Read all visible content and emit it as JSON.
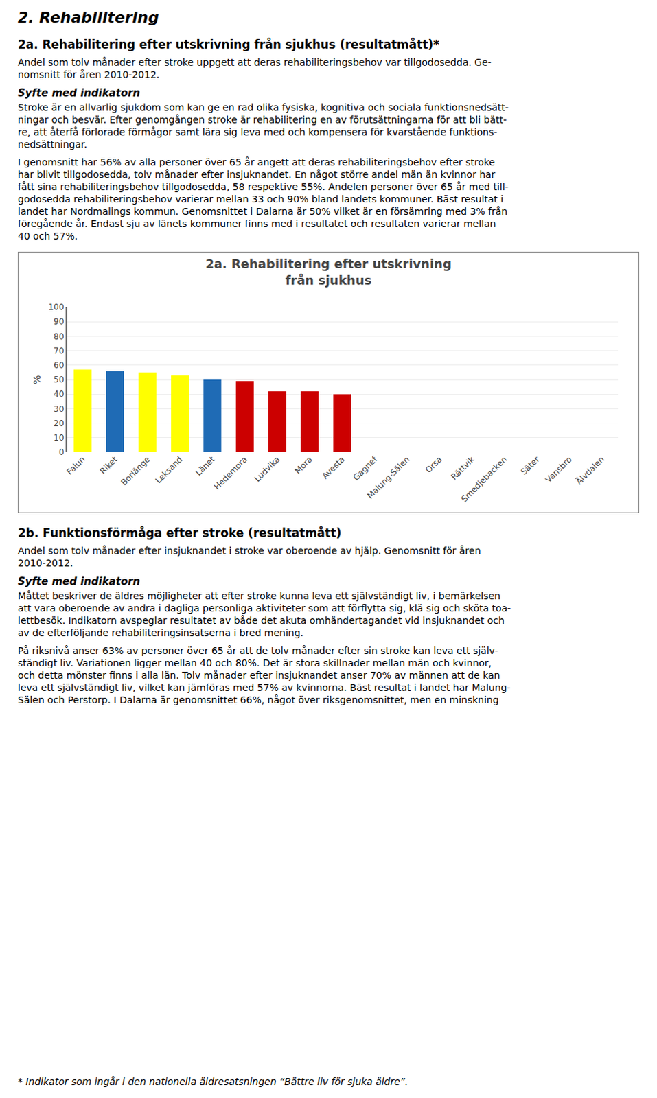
{
  "chart_data": {
    "type": "bar",
    "title": "2a. Rehabilitering efter utskrivning\nfrån sjukhus",
    "ylabel": "%",
    "categories": [
      "Falun",
      "Riket",
      "Borlänge",
      "Leksand",
      "Länet",
      "Hedemora",
      "Ludvika",
      "Mora",
      "Avesta",
      "Gagnef",
      "Malung-Sälen",
      "Orsa",
      "Rättvik",
      "Smedjebacken",
      "Säter",
      "Vansbro",
      "Älvdalen"
    ],
    "values": [
      57,
      56,
      55,
      53,
      50,
      49,
      42,
      42,
      40,
      0,
      0,
      0,
      0,
      0,
      0,
      0,
      0
    ],
    "colors": [
      "#FFFF00",
      "#1F6BB5",
      "#FFFF00",
      "#FFFF00",
      "#1F6BB5",
      "#CC0000",
      "#CC0000",
      "#CC0000",
      "#CC0000",
      null,
      null,
      null,
      null,
      null,
      null,
      null,
      null
    ],
    "ylim": [
      0,
      100
    ],
    "yticks": [
      0,
      10,
      20,
      30,
      40,
      50,
      60,
      70,
      80,
      90,
      100
    ],
    "grid": true,
    "annotations": [
      "2. Rehabilitering",
      "2a. Rehabilitering efter utskrivning från sjukhus (resultatmått)*",
      "Andel som tolv månader efter stroke uppgett att deras rehabiliteringsbehov var tillgodosedda. Ge-\nnomsnitt för åren 2010-2012.",
      "Syfte med indikatorn",
      "Stroke är en allvarlig sjukdom som kan ge en rad olika fysiska, kognitiva och sociala funktionsnedsätt-\nningar och besvär. Efter genomgången stroke är rehabilitering en av förutsättningarna för att bli bätt-\nre, att återfå förlorade förmågor samt lära sig leva med och kompensera för kvarstående funktions-\nnedsättningar.",
      "I genomsnitt har 56% av alla personer över 65 år angett att deras rehabiliteringsbehov efter stroke\nhar blivit tillgodosedda, tolv månader efter insjuknandet. En något större andel män än kvinnor har\nfått sina rehabiliteringsbehov tillgodosedda, 58 respektive 55%. Andelen personer över 65 år med till-\ngodosedda rehabiliteringsbehov varierar mellan 33 och 90% bland landets kommuner. Bäst resultat i\nlandet har Nordmalings kommun. Genomsnittet i Dalarna är 50% vilket är en försämring med 3% från\nföregående år. Endast sju av länets kommuner finns med i resultatet och resultaten varierar mellan\n40 och 57%.",
      "2b. Funktionsförmåga efter stroke (resultatmått)",
      "Andel som tolv månader efter insjuknandet i stroke var oberoende av hjälp. Genomsnitt för åren\n2010-2012.",
      "Syfte med indikatorn",
      "Måttet beskriver de äldres möjligheter att efter stroke kunna leva ett självständigt liv, i bemärkelsen\natt vara oberoende av andra i dagliga personliga aktiviteter som att förflytta sig, klä sig och sköta toa-\nlettbesök. Indikatorn avspeglar resultatet av både det akuta omhändertagandet vid insjuknandet och\nav de efterföljande rehabiliteringsinsatserna i bred mening.",
      "På riksnivå anser 63% av personer över 65 år att de tolv månader efter sin stroke kan leva ett själv-\nständigt liv. Variationen ligger mellan 40 och 80%. Det är stora skillnader mellan män och kvinnor,\noch detta mönster finns i alla län. Tolv månader efter insjuknandet anser 70% av männen att de kan\nleva ett självständigt liv, vilket kan jämföras med 57% av kvinnorna. Bäst resultat i landet har Malung-\nSälen och Perstorp. I Dalarna är genomsnittet 66%, något över riksgenomsnittet, men en minskning",
      "* Indikator som ingår i den nationella äldresatsningen “Bättre liv för sjuka äldre”."
    ]
  }
}
